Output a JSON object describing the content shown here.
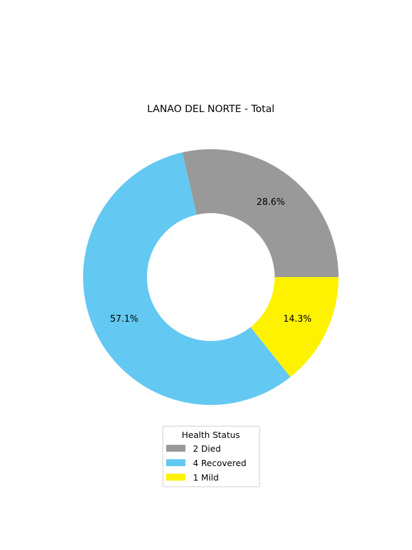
{
  "chart_data": {
    "type": "pie",
    "title": "LANAO DEL NORTE - Total",
    "donut": true,
    "slices": [
      {
        "label": "Died",
        "count": 2,
        "percent_label": "28.6%",
        "color": "#999999"
      },
      {
        "label": "Recovered",
        "count": 4,
        "percent_label": "57.1%",
        "color": "#63c8f2"
      },
      {
        "label": "Mild",
        "count": 1,
        "percent_label": "14.3%",
        "color": "#fff200"
      }
    ],
    "legend": {
      "title": "Health Status",
      "placement": "bottom-center",
      "entries": [
        {
          "count": "2",
          "label": "Died"
        },
        {
          "count": "4",
          "label": "Recovered"
        },
        {
          "count": "1",
          "label": "Mild"
        }
      ]
    }
  }
}
